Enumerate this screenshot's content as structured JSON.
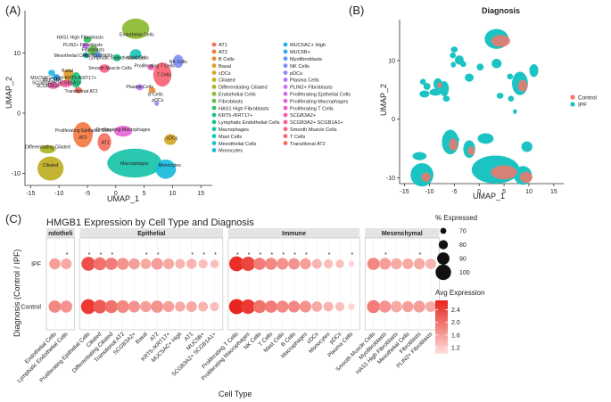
{
  "panel_labels": [
    "(A)",
    "(B)",
    "(C)"
  ],
  "chart_data": [
    {
      "type": "scatter",
      "panel": "A",
      "title": "",
      "xlabel": "UMAP_1",
      "ylabel": "UMAP_2",
      "xticks": [
        -15,
        -10,
        -5,
        0,
        5,
        10,
        15
      ],
      "yticks": [
        -10,
        0,
        10
      ],
      "xlim": [
        -16,
        17
      ],
      "ylim": [
        -12,
        17
      ],
      "legend": [
        "AT1",
        "AT2",
        "B Cells",
        "Basal",
        "cDCs",
        "Ciliated",
        "Differentiating Ciliated",
        "Endothelial Cells",
        "Fibroblasts",
        "HAS1 High Fibroblasts",
        "KRT5-/KRT17+",
        "Lymphatic Endothelial Cells",
        "Macrophages",
        "Mast Cells",
        "Mesothelial Cells",
        "Monocytes",
        "MUC5AC+ High",
        "MUC5B+",
        "Myofibroblasts",
        "NK Cells",
        "pDCs",
        "Plasma Cells",
        "PLIN2+ Fibroblasts",
        "Proliferating Epithelial Cells",
        "Proliferating Macrophages",
        "Proliferating T Cells",
        "SCGB3A2+",
        "SCGB3A2+ SCGB1A1+",
        "Smooth Muscle Cells",
        "T Cells",
        "Transitional AT2"
      ],
      "legend_colors": [
        "#f4705f",
        "#f47a3f",
        "#ee8a2e",
        "#e29a29",
        "#d3a624",
        "#bfae22",
        "#a7b524",
        "#8bba2f",
        "#63bd45",
        "#33bf5d",
        "#1cc17a",
        "#16c293",
        "#17c3a8",
        "#18c4bc",
        "#1ac1cd",
        "#19bbdb",
        "#20b3e6",
        "#36a8f0",
        "#5b9cf7",
        "#7b90fb",
        "#9885fc",
        "#b07bf8",
        "#c572f1",
        "#d76ae5",
        "#e564d6",
        "#ef60c4",
        "#f65cb1",
        "#fa5c9c",
        "#fb5f87",
        "#f96373",
        "#f5685f"
      ],
      "cluster_labels": [
        "Endothelial Cells",
        "HAS1 High Fibroblasts",
        "PLIN2+ Fibroblasts",
        "Fibroblasts",
        "Mesothelial Cells",
        "Myofibroblasts",
        "Lymphatic Endothelial Cells",
        "Smooth Muscle Cells",
        "Mast Cells",
        "NK Cells",
        "Proliferating T Cells",
        "T Cells",
        "MUC5AC+ High",
        "MUC5B+",
        "Basal",
        "SCGB3A2+",
        "SCGB3A2+ SCGB1A1+",
        "KRT5-/KRT17+",
        "Transitional AT2",
        "B Cells",
        "Plasma Cells",
        "pDCs",
        "Proliferating Epithelial Cells",
        "Proliferating Macrophages",
        "AT2",
        "cDCs",
        "AT1",
        "Differentiating Ciliated",
        "Ciliated",
        "Macrophages",
        "Monocytes"
      ]
    },
    {
      "type": "scatter",
      "panel": "B",
      "title": "Diagnosis",
      "xlabel": "UMAP_1",
      "ylabel": "UMAP_2",
      "xticks": [
        -15,
        -10,
        -5,
        0,
        5,
        10,
        15
      ],
      "yticks": [
        -10,
        0,
        10
      ],
      "xlim": [
        -16,
        17
      ],
      "ylim": [
        -11,
        17
      ],
      "legend": [
        "Control",
        "IPF"
      ],
      "legend_colors": [
        "#f4766a",
        "#1cc3c3"
      ]
    },
    {
      "type": "dot",
      "panel": "C",
      "title": "HMGB1 Expression by Cell Type and Diagnosis",
      "xlabel": "Cell Type",
      "ylabel": "Diagnosis (Control / IPF)",
      "rows": [
        "IPF",
        "Control"
      ],
      "facets": [
        {
          "name": "Endothelial",
          "label": "ndotheli",
          "categories": [
            "Endothelial Cells",
            "Lymphatic Endothelial Cells"
          ],
          "ipf_pct": [
            86,
            85
          ],
          "ipf_expr": [
            1.6,
            1.5
          ],
          "ctrl_pct": [
            90,
            89
          ],
          "ctrl_expr": [
            1.8,
            1.7
          ],
          "star": [
            false,
            true
          ]
        },
        {
          "name": "Epithelial",
          "label": "Epithelial",
          "categories": [
            "Proliferating Epithelial Cells",
            "Ciliated",
            "Differentiating Ciliated",
            "Transitional AT2",
            "SCGB3A2+",
            "Basal",
            "AT2",
            "KRT5-/KRT17+",
            "MUC5AC+ High",
            "AT1",
            "MUC5B+",
            "SCGB3A2+ SCGB1A1+"
          ],
          "ipf_pct": [
            95,
            92,
            90,
            89,
            86,
            84,
            88,
            85,
            82,
            83,
            80,
            78
          ],
          "ipf_expr": [
            2.3,
            2.0,
            1.9,
            1.7,
            1.6,
            1.5,
            1.6,
            1.5,
            1.4,
            1.4,
            1.3,
            1.3
          ],
          "ctrl_pct": [
            98,
            94,
            92,
            91,
            88,
            86,
            90,
            86,
            83,
            85,
            82,
            80
          ],
          "ctrl_expr": [
            2.5,
            2.2,
            2.0,
            1.8,
            1.7,
            1.6,
            1.7,
            1.6,
            1.5,
            1.5,
            1.4,
            1.3
          ],
          "star": [
            true,
            true,
            true,
            false,
            false,
            true,
            true,
            false,
            false,
            true,
            true,
            true
          ]
        },
        {
          "name": "Immune",
          "label": "Immune",
          "categories": [
            "Proliferating T Cells",
            "Proliferating Macrophages",
            "NK Cells",
            "T Cells",
            "Mast Cells",
            "B Cells",
            "Macrophages",
            "cDCs",
            "Monocytes",
            "pDCs",
            "Plasma Cells"
          ],
          "ipf_pct": [
            98,
            96,
            90,
            89,
            88,
            87,
            86,
            82,
            80,
            78,
            70
          ],
          "ipf_expr": [
            2.6,
            2.4,
            1.9,
            1.8,
            1.7,
            1.7,
            1.6,
            1.4,
            1.3,
            1.3,
            1.1
          ],
          "ctrl_pct": [
            99,
            97,
            92,
            90,
            89,
            88,
            88,
            84,
            82,
            80,
            72
          ],
          "ctrl_expr": [
            2.7,
            2.5,
            2.0,
            1.9,
            1.8,
            1.8,
            1.7,
            1.5,
            1.4,
            1.3,
            1.1
          ],
          "star": [
            true,
            true,
            true,
            true,
            true,
            true,
            true,
            false,
            true,
            false,
            true
          ]
        },
        {
          "name": "Mesenchymal",
          "label": "Mesenchymal",
          "categories": [
            "Smooth Muscle Cells",
            "Myofibroblasts",
            "HAS1 High Fibroblasts",
            "Mesothelial Cells",
            "Fibroblasts",
            "PLIN2+ Fibroblasts"
          ],
          "ipf_pct": [
            90,
            88,
            86,
            85,
            86,
            84
          ],
          "ipf_expr": [
            1.8,
            1.6,
            1.5,
            1.5,
            1.5,
            1.4
          ],
          "ctrl_pct": [
            92,
            89,
            87,
            86,
            88,
            85
          ],
          "ctrl_expr": [
            1.9,
            1.7,
            1.5,
            1.6,
            1.6,
            1.5
          ],
          "star": [
            false,
            true,
            false,
            false,
            true,
            false
          ]
        }
      ],
      "size_legend": {
        "title": "% Expressed",
        "values": [
          70,
          80,
          90,
          100
        ]
      },
      "color_legend": {
        "title": "Avg Expression",
        "ticks": [
          1.2,
          1.6,
          2.0,
          2.4
        ],
        "range": [
          1.0,
          2.7
        ],
        "low_color": "#fde0dd",
        "high_color": "#e8241c"
      }
    }
  ]
}
